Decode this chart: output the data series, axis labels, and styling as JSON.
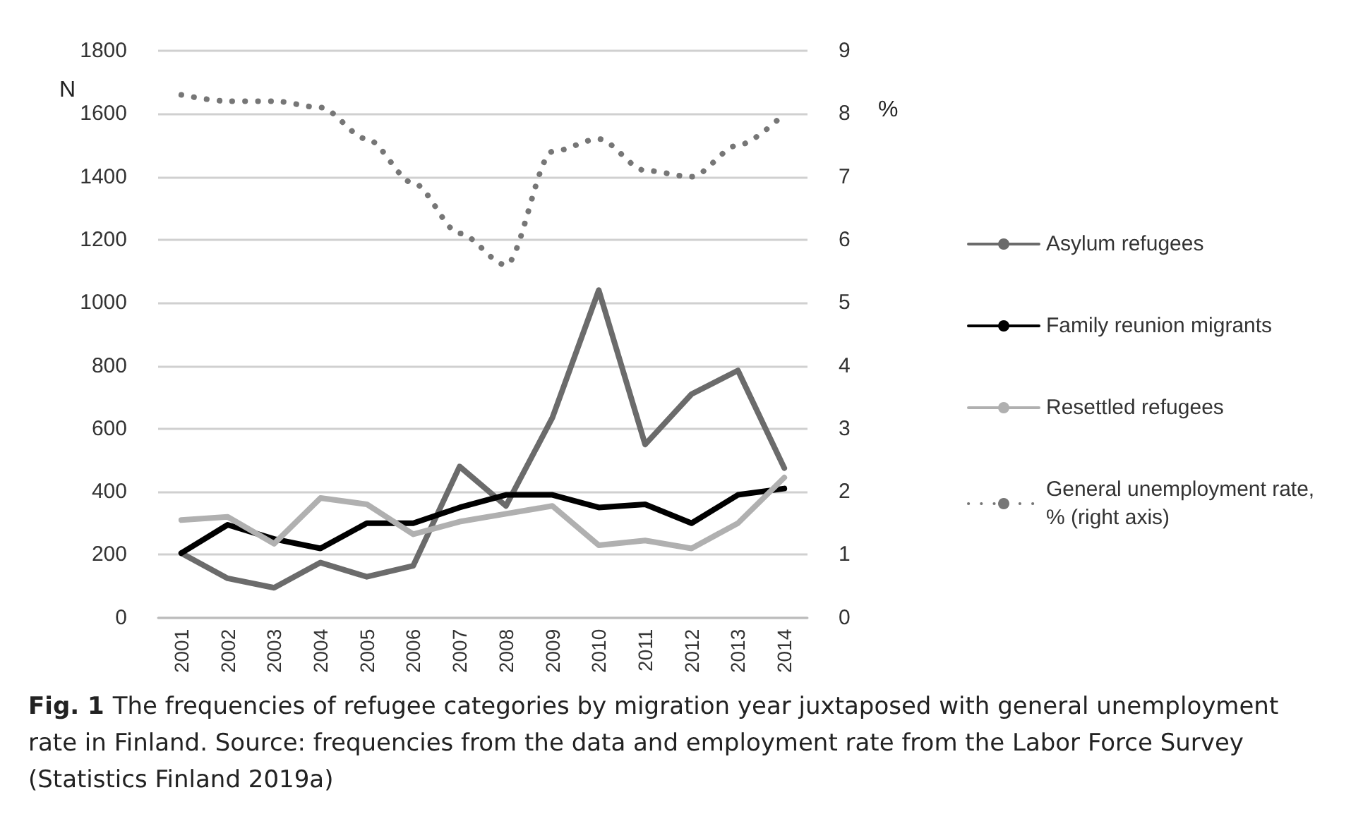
{
  "chart_data": {
    "type": "line",
    "ylabel": "N",
    "y2label": "%",
    "categories": [
      "2001",
      "2002",
      "2003",
      "2004",
      "2005",
      "2006",
      "2007",
      "2008",
      "2009",
      "2010",
      "2011",
      "2012",
      "2013",
      "2014"
    ],
    "series": [
      {
        "name": "Asylum refugees",
        "color": "#6b6b6b",
        "values": [
          205,
          125,
          95,
          175,
          130,
          165,
          480,
          355,
          635,
          1040,
          550,
          710,
          785,
          475
        ]
      },
      {
        "name": "Family reunion migrants",
        "color": "#000000",
        "values": [
          205,
          295,
          250,
          220,
          300,
          300,
          350,
          390,
          390,
          350,
          360,
          300,
          390,
          410
        ]
      },
      {
        "name": "Resettled refugees",
        "color": "#b0b0b0",
        "values": [
          310,
          320,
          235,
          380,
          360,
          265,
          305,
          330,
          355,
          230,
          245,
          220,
          300,
          445
        ]
      },
      {
        "name": "General unemployment rate, % (right axis)",
        "color": "#767676",
        "axis": "y2",
        "line_style": "dotted",
        "values": [
          8.3,
          8.2,
          8.2,
          8.1,
          7.6,
          6.9,
          6.1,
          5.6,
          7.4,
          7.6,
          7.1,
          7.0,
          7.5,
          8.0
        ]
      }
    ],
    "ylim": [
      0,
      1800
    ],
    "yticks": [
      0,
      200,
      400,
      600,
      800,
      1000,
      1200,
      1400,
      1600,
      1800
    ],
    "y2lim": [
      0,
      9
    ],
    "y2ticks": [
      0,
      1,
      2,
      3,
      4,
      5,
      6,
      7,
      8,
      9
    ],
    "grid": "y",
    "legend": "right",
    "marker": "none",
    "annotations": [
      "Fig. 1",
      "The frequencies of refugee categories by migration year juxtaposed with general unemployment rate in Finland. Source: frequencies from the data and employment rate from the Labor Force Survey (Statistics Finland 2019a)"
    ]
  }
}
